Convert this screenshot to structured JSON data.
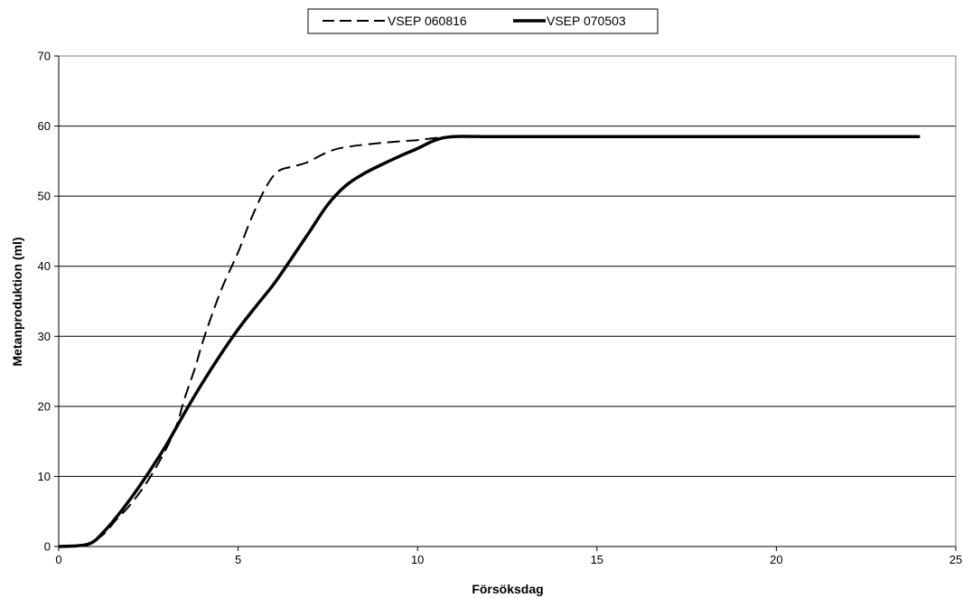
{
  "chart_data": {
    "type": "line",
    "xlabel": "Försöksdag",
    "ylabel": "Metanproduktion (ml)",
    "xlim": [
      0,
      25
    ],
    "ylim": [
      0,
      70
    ],
    "xticks": [
      "0",
      "5",
      "10",
      "15",
      "20",
      "25"
    ],
    "yticks": [
      "0",
      "10",
      "20",
      "30",
      "40",
      "50",
      "60",
      "70"
    ],
    "grid": "horizontal",
    "legend_position": "top",
    "series": [
      {
        "name": "VSEP 060816",
        "style": "dashed",
        "color": "#000000",
        "x": [
          0,
          0.5,
          0.8,
          1,
          1.3,
          1.6,
          2,
          2.5,
          3,
          3.3,
          3.5,
          3.8,
          4,
          4.3,
          4.6,
          5,
          5.3,
          5.6,
          5.8,
          6,
          6.2,
          6.5,
          6.8,
          7,
          7.5,
          8,
          9,
          10,
          10.5,
          11,
          12,
          15,
          20,
          24
        ],
        "y": [
          0,
          0.1,
          0.3,
          0.8,
          2,
          3.8,
          6,
          9.5,
          14,
          17.5,
          21,
          25.5,
          29,
          33.5,
          37.5,
          42,
          46,
          49.5,
          51.5,
          53,
          53.8,
          54.2,
          54.6,
          55,
          56.3,
          57,
          57.6,
          58,
          58.3,
          58.5,
          58.5,
          58.5,
          58.5,
          58.5
        ]
      },
      {
        "name": "VSEP 070503",
        "style": "solid",
        "color": "#000000",
        "x": [
          0,
          0.5,
          0.8,
          1,
          1.2,
          1.5,
          2,
          2.5,
          3,
          3.5,
          4,
          4.5,
          5,
          5.5,
          6,
          6.5,
          7,
          7.5,
          8,
          8.5,
          9,
          9.5,
          10,
          10.5,
          11,
          12,
          13,
          15,
          20,
          24
        ],
        "y": [
          0,
          0.1,
          0.3,
          0.8,
          1.8,
          3.5,
          6.8,
          10.5,
          14.5,
          19,
          23.3,
          27.3,
          31,
          34.3,
          37.5,
          41.2,
          45,
          48.8,
          51.5,
          53.2,
          54.5,
          55.7,
          56.8,
          58,
          58.5,
          58.5,
          58.5,
          58.5,
          58.5,
          58.5
        ]
      }
    ]
  }
}
